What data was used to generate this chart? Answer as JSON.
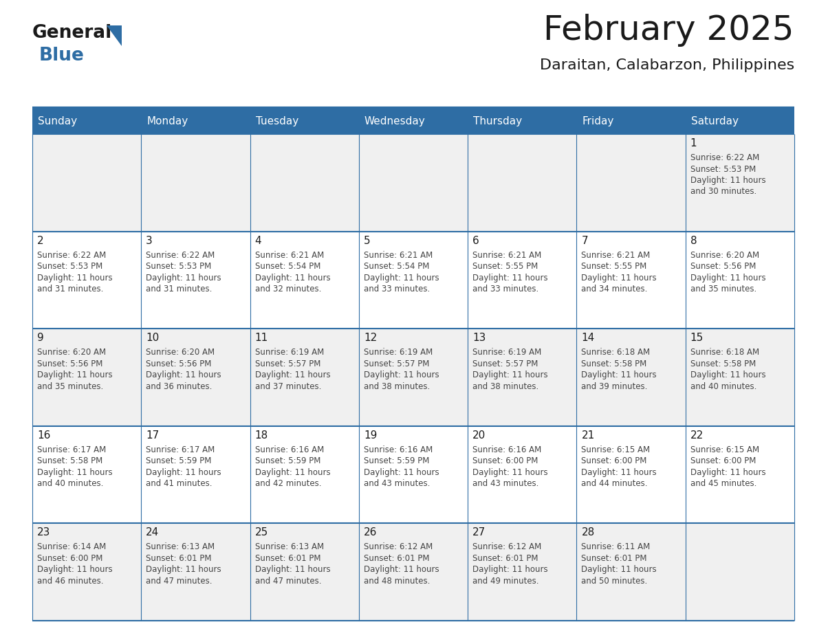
{
  "title": "February 2025",
  "subtitle": "Daraitan, Calabarzon, Philippines",
  "header_bg": "#2E6DA4",
  "header_text_color": "#FFFFFF",
  "cell_bg_row0": "#F0F0F0",
  "cell_bg_row1": "#FFFFFF",
  "cell_line_color": "#2E6DA4",
  "day_headers": [
    "Sunday",
    "Monday",
    "Tuesday",
    "Wednesday",
    "Thursday",
    "Friday",
    "Saturday"
  ],
  "days": [
    {
      "day": 1,
      "col": 6,
      "row": 0,
      "sunrise": "6:22 AM",
      "sunset": "5:53 PM",
      "dl1": "Daylight: 11 hours",
      "dl2": "and 30 minutes."
    },
    {
      "day": 2,
      "col": 0,
      "row": 1,
      "sunrise": "6:22 AM",
      "sunset": "5:53 PM",
      "dl1": "Daylight: 11 hours",
      "dl2": "and 31 minutes."
    },
    {
      "day": 3,
      "col": 1,
      "row": 1,
      "sunrise": "6:22 AM",
      "sunset": "5:53 PM",
      "dl1": "Daylight: 11 hours",
      "dl2": "and 31 minutes."
    },
    {
      "day": 4,
      "col": 2,
      "row": 1,
      "sunrise": "6:21 AM",
      "sunset": "5:54 PM",
      "dl1": "Daylight: 11 hours",
      "dl2": "and 32 minutes."
    },
    {
      "day": 5,
      "col": 3,
      "row": 1,
      "sunrise": "6:21 AM",
      "sunset": "5:54 PM",
      "dl1": "Daylight: 11 hours",
      "dl2": "and 33 minutes."
    },
    {
      "day": 6,
      "col": 4,
      "row": 1,
      "sunrise": "6:21 AM",
      "sunset": "5:55 PM",
      "dl1": "Daylight: 11 hours",
      "dl2": "and 33 minutes."
    },
    {
      "day": 7,
      "col": 5,
      "row": 1,
      "sunrise": "6:21 AM",
      "sunset": "5:55 PM",
      "dl1": "Daylight: 11 hours",
      "dl2": "and 34 minutes."
    },
    {
      "day": 8,
      "col": 6,
      "row": 1,
      "sunrise": "6:20 AM",
      "sunset": "5:56 PM",
      "dl1": "Daylight: 11 hours",
      "dl2": "and 35 minutes."
    },
    {
      "day": 9,
      "col": 0,
      "row": 2,
      "sunrise": "6:20 AM",
      "sunset": "5:56 PM",
      "dl1": "Daylight: 11 hours",
      "dl2": "and 35 minutes."
    },
    {
      "day": 10,
      "col": 1,
      "row": 2,
      "sunrise": "6:20 AM",
      "sunset": "5:56 PM",
      "dl1": "Daylight: 11 hours",
      "dl2": "and 36 minutes."
    },
    {
      "day": 11,
      "col": 2,
      "row": 2,
      "sunrise": "6:19 AM",
      "sunset": "5:57 PM",
      "dl1": "Daylight: 11 hours",
      "dl2": "and 37 minutes."
    },
    {
      "day": 12,
      "col": 3,
      "row": 2,
      "sunrise": "6:19 AM",
      "sunset": "5:57 PM",
      "dl1": "Daylight: 11 hours",
      "dl2": "and 38 minutes."
    },
    {
      "day": 13,
      "col": 4,
      "row": 2,
      "sunrise": "6:19 AM",
      "sunset": "5:57 PM",
      "dl1": "Daylight: 11 hours",
      "dl2": "and 38 minutes."
    },
    {
      "day": 14,
      "col": 5,
      "row": 2,
      "sunrise": "6:18 AM",
      "sunset": "5:58 PM",
      "dl1": "Daylight: 11 hours",
      "dl2": "and 39 minutes."
    },
    {
      "day": 15,
      "col": 6,
      "row": 2,
      "sunrise": "6:18 AM",
      "sunset": "5:58 PM",
      "dl1": "Daylight: 11 hours",
      "dl2": "and 40 minutes."
    },
    {
      "day": 16,
      "col": 0,
      "row": 3,
      "sunrise": "6:17 AM",
      "sunset": "5:58 PM",
      "dl1": "Daylight: 11 hours",
      "dl2": "and 40 minutes."
    },
    {
      "day": 17,
      "col": 1,
      "row": 3,
      "sunrise": "6:17 AM",
      "sunset": "5:59 PM",
      "dl1": "Daylight: 11 hours",
      "dl2": "and 41 minutes."
    },
    {
      "day": 18,
      "col": 2,
      "row": 3,
      "sunrise": "6:16 AM",
      "sunset": "5:59 PM",
      "dl1": "Daylight: 11 hours",
      "dl2": "and 42 minutes."
    },
    {
      "day": 19,
      "col": 3,
      "row": 3,
      "sunrise": "6:16 AM",
      "sunset": "5:59 PM",
      "dl1": "Daylight: 11 hours",
      "dl2": "and 43 minutes."
    },
    {
      "day": 20,
      "col": 4,
      "row": 3,
      "sunrise": "6:16 AM",
      "sunset": "6:00 PM",
      "dl1": "Daylight: 11 hours",
      "dl2": "and 43 minutes."
    },
    {
      "day": 21,
      "col": 5,
      "row": 3,
      "sunrise": "6:15 AM",
      "sunset": "6:00 PM",
      "dl1": "Daylight: 11 hours",
      "dl2": "and 44 minutes."
    },
    {
      "day": 22,
      "col": 6,
      "row": 3,
      "sunrise": "6:15 AM",
      "sunset": "6:00 PM",
      "dl1": "Daylight: 11 hours",
      "dl2": "and 45 minutes."
    },
    {
      "day": 23,
      "col": 0,
      "row": 4,
      "sunrise": "6:14 AM",
      "sunset": "6:00 PM",
      "dl1": "Daylight: 11 hours",
      "dl2": "and 46 minutes."
    },
    {
      "day": 24,
      "col": 1,
      "row": 4,
      "sunrise": "6:13 AM",
      "sunset": "6:01 PM",
      "dl1": "Daylight: 11 hours",
      "dl2": "and 47 minutes."
    },
    {
      "day": 25,
      "col": 2,
      "row": 4,
      "sunrise": "6:13 AM",
      "sunset": "6:01 PM",
      "dl1": "Daylight: 11 hours",
      "dl2": "and 47 minutes."
    },
    {
      "day": 26,
      "col": 3,
      "row": 4,
      "sunrise": "6:12 AM",
      "sunset": "6:01 PM",
      "dl1": "Daylight: 11 hours",
      "dl2": "and 48 minutes."
    },
    {
      "day": 27,
      "col": 4,
      "row": 4,
      "sunrise": "6:12 AM",
      "sunset": "6:01 PM",
      "dl1": "Daylight: 11 hours",
      "dl2": "and 49 minutes."
    },
    {
      "day": 28,
      "col": 5,
      "row": 4,
      "sunrise": "6:11 AM",
      "sunset": "6:01 PM",
      "dl1": "Daylight: 11 hours",
      "dl2": "and 50 minutes."
    }
  ],
  "num_rows": 5,
  "num_cols": 7,
  "logo_general_color": "#1a1a1a",
  "logo_blue_color": "#2E6DA4",
  "logo_triangle_color": "#2E6DA4",
  "title_fontsize": 36,
  "subtitle_fontsize": 16,
  "header_fontsize": 11,
  "day_num_fontsize": 11,
  "info_fontsize": 8.5
}
